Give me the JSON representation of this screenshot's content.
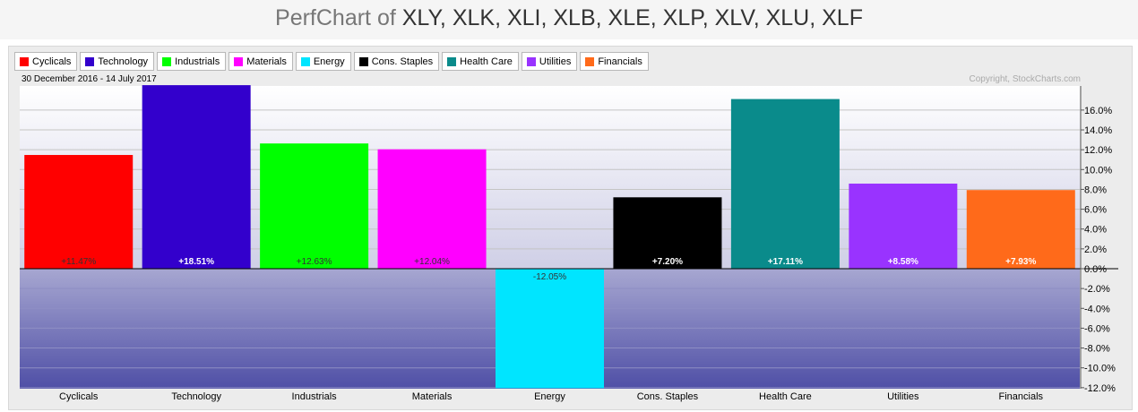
{
  "header": {
    "title_lead": "PerfChart of",
    "title_tickers": "XLY, XLK, XLI, XLB, XLE, XLP, XLV, XLU, XLF"
  },
  "chart_data": {
    "type": "bar",
    "date_range": "30 December 2016 - 14 July 2017",
    "copyright": "Copyright, StockCharts.com",
    "categories": [
      "Cyclicals",
      "Technology",
      "Industrials",
      "Materials",
      "Energy",
      "Cons. Staples",
      "Health Care",
      "Utilities",
      "Financials"
    ],
    "values": [
      11.47,
      18.51,
      12.63,
      12.04,
      -12.05,
      7.2,
      17.11,
      8.58,
      7.93
    ],
    "value_labels": [
      "+11.47%",
      "+18.51%",
      "+12.63%",
      "+12.04%",
      "-12.05%",
      "+7.20%",
      "+17.11%",
      "+8.58%",
      "+7.93%"
    ],
    "colors": [
      "#ff0000",
      "#3300cc",
      "#00ff00",
      "#ff00ff",
      "#00e5ff",
      "#000000",
      "#0a8b8b",
      "#9933ff",
      "#ff6a1a"
    ],
    "label_colors": [
      "#333333",
      "#ffffff",
      "#333333",
      "#333333",
      "#333333",
      "#ffffff",
      "#ffffff",
      "#ffffff",
      "#ffffff"
    ],
    "y_ticks": [
      "16.0%",
      "14.0%",
      "12.0%",
      "10.0%",
      "8.0%",
      "6.0%",
      "4.0%",
      "2.0%",
      "0.0%",
      "-2.0%",
      "-4.0%",
      "-6.0%",
      "-8.0%",
      "-10.0%",
      "-12.0%"
    ],
    "y_tick_values": [
      16,
      14,
      12,
      10,
      8,
      6,
      4,
      2,
      0,
      -2,
      -4,
      -6,
      -8,
      -10,
      -12
    ],
    "ylim": [
      -12.4,
      18.5
    ],
    "grid": true,
    "legend_position": "top-left"
  }
}
